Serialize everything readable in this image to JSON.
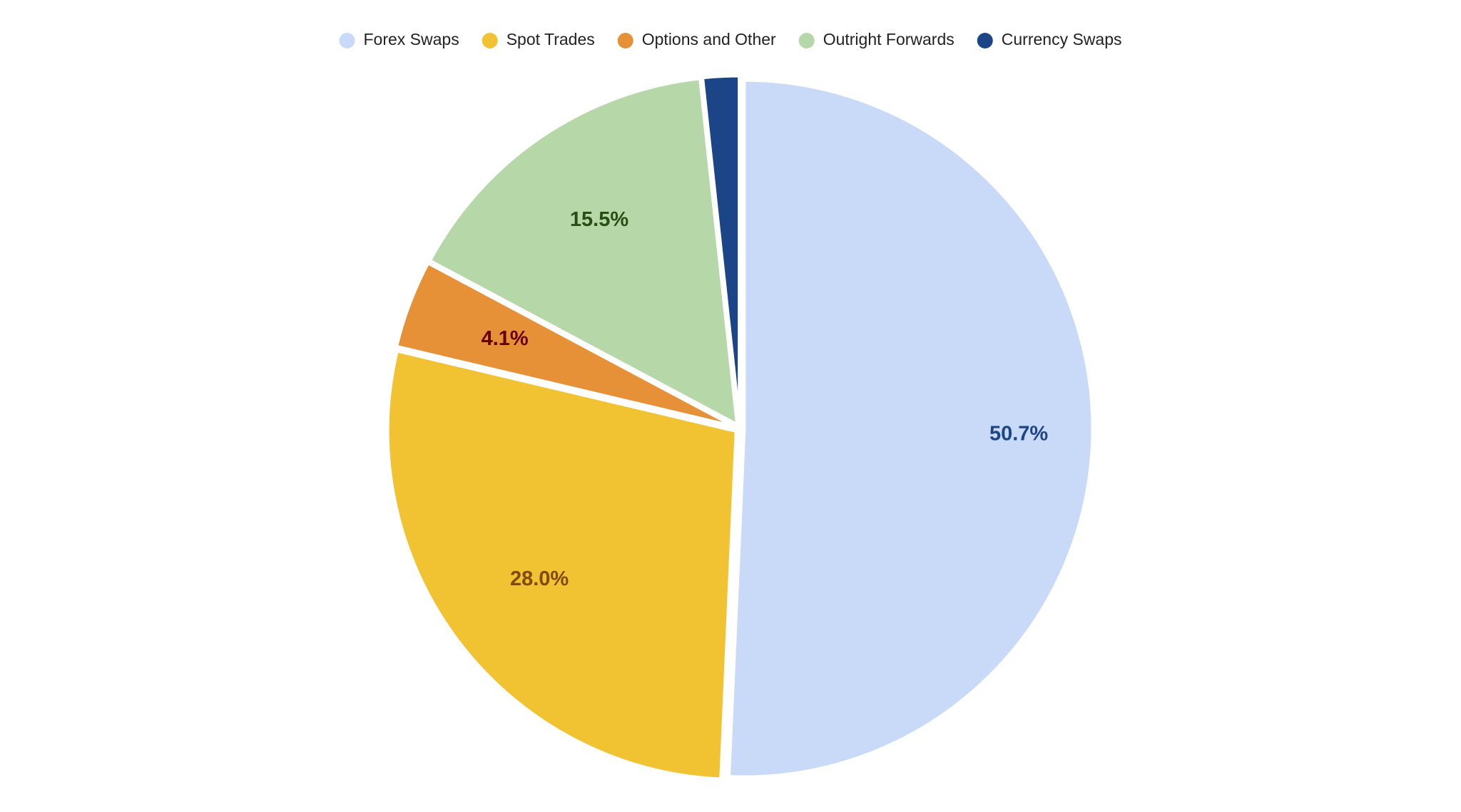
{
  "chart_data": {
    "type": "pie",
    "categories": [
      "Forex Swaps",
      "Spot Trades",
      "Options and Other",
      "Outright Forwards",
      "Currency Swaps"
    ],
    "values": [
      50.7,
      28.0,
      4.1,
      15.5,
      1.7
    ],
    "value_labels": [
      "50.7%",
      "28.0%",
      "4.1%",
      "15.5%",
      null
    ],
    "colors": [
      "#c9daf8",
      "#f1c232",
      "#e69138",
      "#b6d7a8",
      "#1c4587"
    ],
    "label_colors": [
      "#1c4587",
      "#7f4a0a",
      "#660000",
      "#274e13",
      null
    ],
    "legend": "top"
  }
}
